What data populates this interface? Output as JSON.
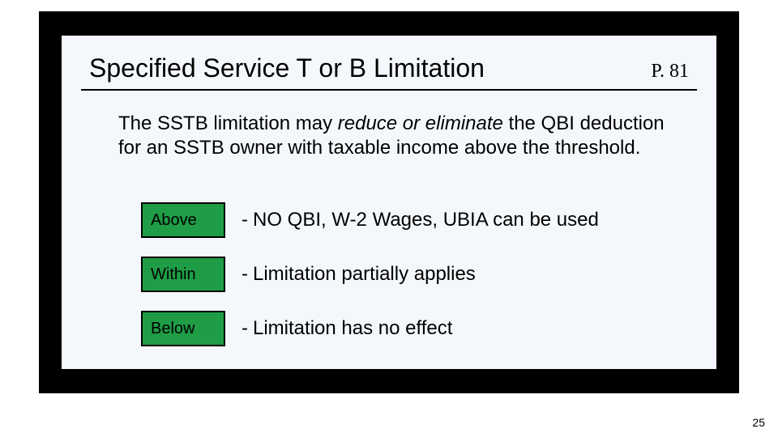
{
  "colors": {
    "slide_bg": "#ffffff",
    "panel_dark": "#000000",
    "panel_light": "#f4f8fc",
    "tag_fill": "#1f9d46",
    "tag_border": "#000000",
    "hr": "#000000",
    "text": "#000000"
  },
  "typography": {
    "title_fontsize": 32,
    "body_fontsize": 24,
    "tag_fontsize": 20,
    "footer_fontsize": 14,
    "page_ref_font": "Times New Roman"
  },
  "header": {
    "title": "Specified Service T or B Limitation",
    "page_ref": "P. 81"
  },
  "body": {
    "text_pre": "The SSTB limitation may ",
    "text_em": "reduce or eliminate",
    "text_post": " the QBI deduction for an SSTB owner with taxable income above the threshold."
  },
  "rows": [
    {
      "tag": "Above",
      "dash": "-",
      "desc": "NO QBI, W-2 Wages, UBIA can be used"
    },
    {
      "tag": "Within",
      "dash": "-",
      "desc": "Limitation partially applies"
    },
    {
      "tag": "Below",
      "dash": "-",
      "desc": "Limitation has no effect"
    }
  ],
  "footer": {
    "slide_number": "25"
  }
}
